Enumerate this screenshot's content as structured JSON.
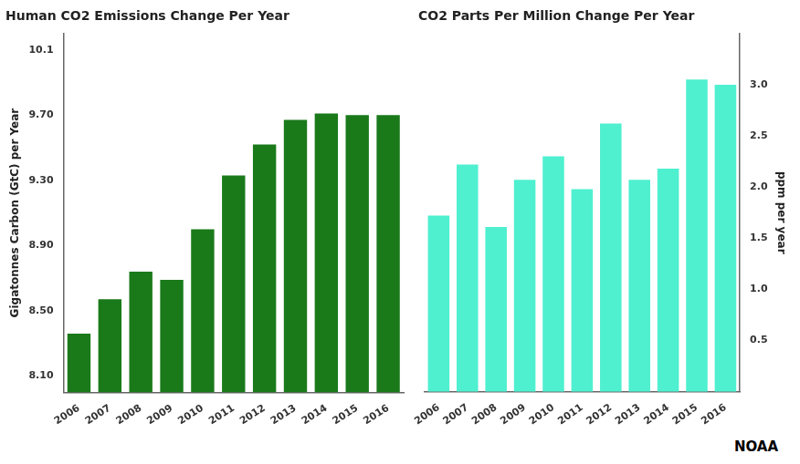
{
  "chart_data": [
    {
      "type": "bar",
      "title": "Human CO2 Emissions Change Per Year",
      "ylabel": "Gigatonnes Carbon (GtC) per Year",
      "categories": [
        "2006",
        "2007",
        "2008",
        "2009",
        "2010",
        "2011",
        "2012",
        "2013",
        "2014",
        "2015",
        "2016"
      ],
      "values": [
        8.36,
        8.57,
        8.74,
        8.69,
        9.0,
        9.33,
        9.52,
        9.67,
        9.71,
        9.7,
        9.7
      ],
      "color": "#1a7a1a",
      "ylim": [
        8.0,
        10.2
      ],
      "yticks": [
        {
          "value": 8.1,
          "label": "8.10"
        },
        {
          "value": 8.5,
          "label": "8.50"
        },
        {
          "value": 8.9,
          "label": "8.90"
        },
        {
          "value": 9.3,
          "label": "9.30"
        },
        {
          "value": 9.7,
          "label": "9.70"
        },
        10.1
      ],
      "grid": false
    },
    {
      "type": "bar",
      "title": "CO2 Parts Per Million Change Per Year",
      "ylabel": "ppm per year",
      "categories": [
        "2006",
        "2007",
        "2008",
        "2009",
        "2010",
        "2011",
        "2012",
        "2013",
        "2014",
        "2015",
        "2016"
      ],
      "values": [
        1.72,
        2.22,
        1.61,
        2.07,
        2.3,
        1.98,
        2.62,
        2.07,
        2.18,
        3.05,
        3.0
      ],
      "color": "#4ef0d0",
      "ylim": [
        0,
        3.5
      ],
      "yticks": [
        0.5,
        {
          "value": 1.0,
          "label": "1.0"
        },
        1.5,
        {
          "value": 2.0,
          "label": "2.0"
        },
        2.5,
        {
          "value": 3.0,
          "label": "3.0"
        }
      ],
      "grid": false,
      "annotations": [
        "NOAA"
      ]
    }
  ]
}
